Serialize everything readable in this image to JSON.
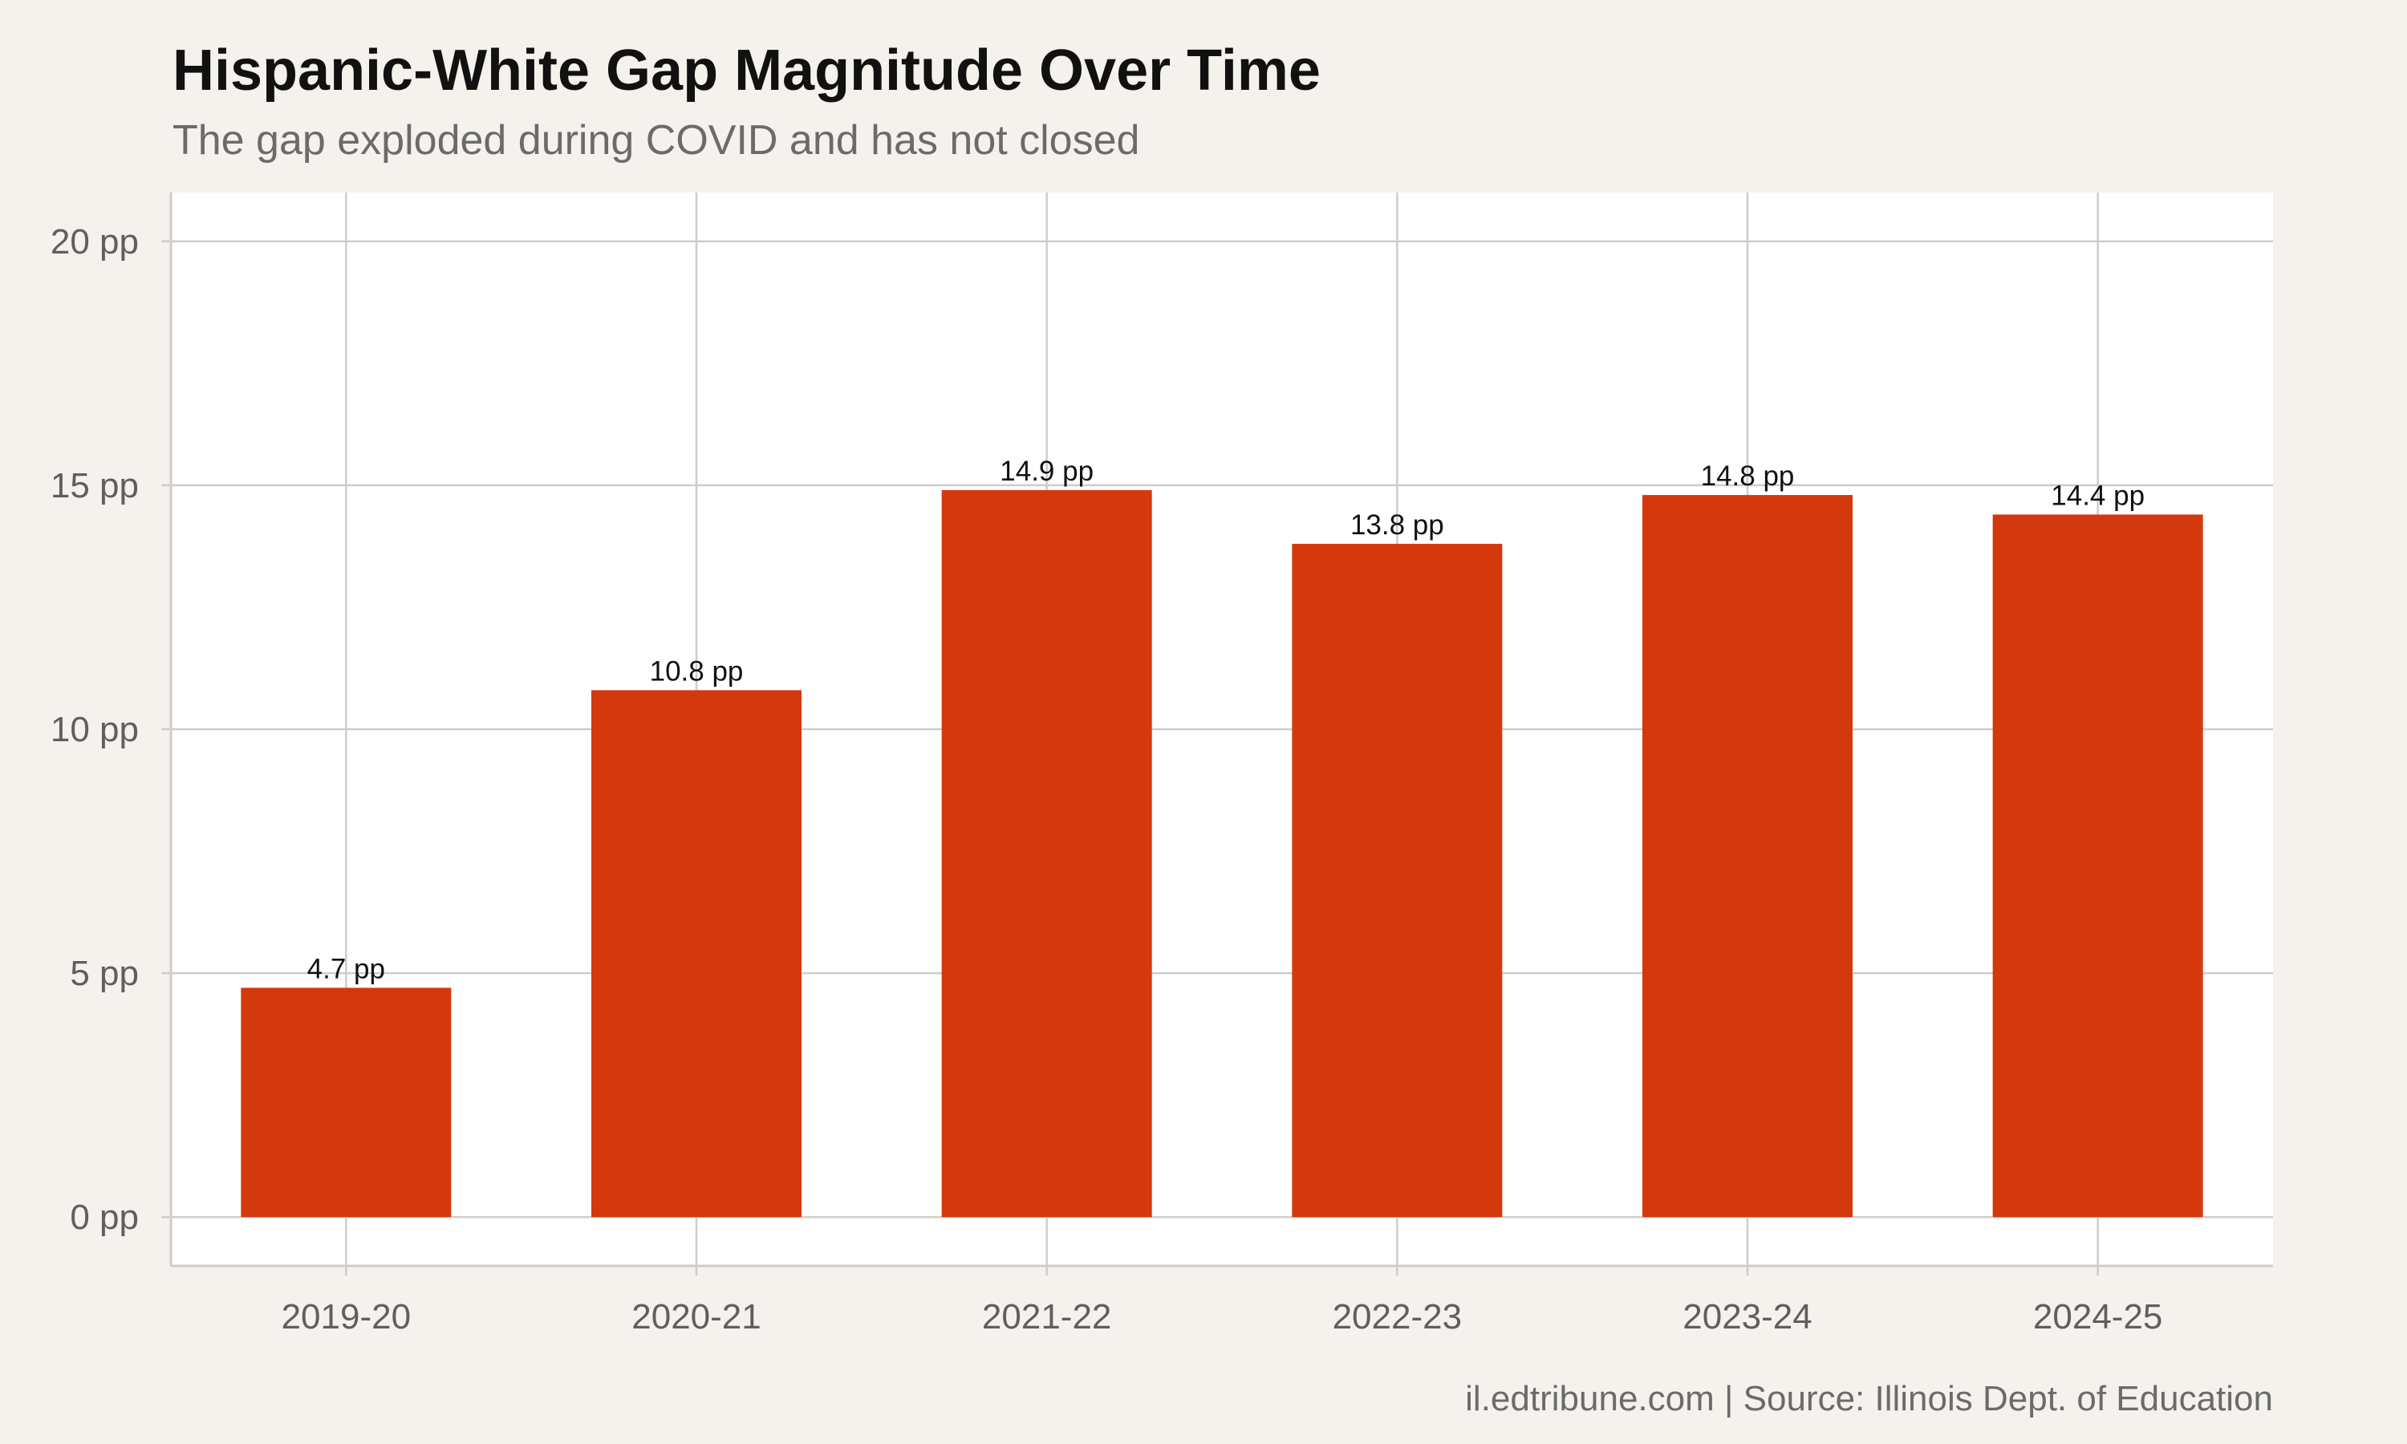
{
  "chart_data": {
    "type": "bar",
    "title": "Hispanic-White Gap Magnitude Over Time",
    "subtitle": "The gap exploded during COVID and has not closed",
    "xlabel": "",
    "ylabel": "",
    "categories": [
      "2019-20",
      "2020-21",
      "2021-22",
      "2022-23",
      "2023-24",
      "2024-25"
    ],
    "values": [
      4.7,
      10.8,
      14.9,
      13.8,
      14.8,
      14.4
    ],
    "data_labels": [
      "4.7 pp",
      "10.8 pp",
      "14.9 pp",
      "13.8 pp",
      "14.8 pp",
      "14.4 pp"
    ],
    "ylim": [
      -1,
      21
    ],
    "yticks": [
      0,
      5,
      10,
      15,
      20
    ],
    "ytick_labels": [
      "0 pp",
      "5 pp",
      "10 pp",
      "15 pp",
      "20 pp"
    ],
    "grid": true,
    "legend": "none",
    "bar_color": "#d4380d",
    "caption": "il.edtribune.com | Source: Illinois Dept. of Education"
  }
}
